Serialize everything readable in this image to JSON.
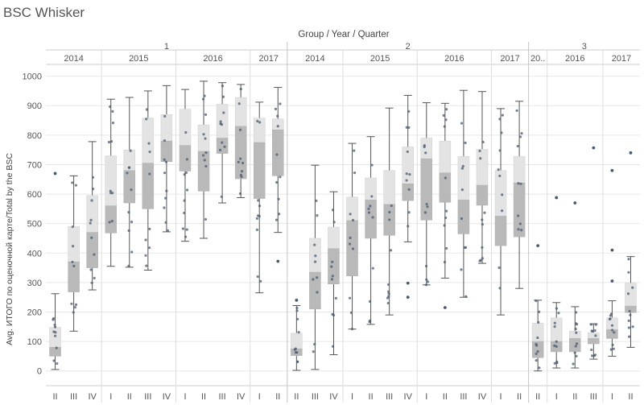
{
  "title": "BSC Whisker",
  "chart_data": {
    "type": "boxplot",
    "column_header": "Group / Year / Quarter",
    "ylabel": "Avg. ИТОГО по оценочной карте/Total by the BSC",
    "ylim": [
      -50,
      1040
    ],
    "yticks": [
      0,
      100,
      200,
      300,
      400,
      500,
      600,
      700,
      800,
      900,
      1000
    ],
    "colors": {
      "upper_box": "#e3e3e3",
      "lower_box": "#b9b9b9",
      "whisker": "#555555",
      "dot": "#4a5a6e",
      "grid": "#e8e8e8",
      "divider": "#cccccc"
    },
    "groups": [
      {
        "name": "1",
        "years": [
          {
            "year": "2014",
            "quarters": [
              {
                "q": "II",
                "min": 5,
                "q1": 50,
                "median": 80,
                "q3": 148,
                "max": 262,
                "outliers": [
                  670
                ]
              },
              {
                "q": "III",
                "min": 135,
                "q1": 268,
                "median": 370,
                "q3": 490,
                "max": 662,
                "outliers": []
              },
              {
                "q": "IV",
                "min": 275,
                "q1": 350,
                "median": 470,
                "q3": 595,
                "max": 778,
                "outliers": []
              }
            ]
          },
          {
            "year": "2015",
            "quarters": [
              {
                "q": "I",
                "min": 355,
                "q1": 468,
                "median": 560,
                "q3": 730,
                "max": 922,
                "outliers": []
              },
              {
                "q": "II",
                "min": 352,
                "q1": 570,
                "median": 680,
                "q3": 750,
                "max": 928,
                "outliers": []
              },
              {
                "q": "III",
                "min": 342,
                "q1": 550,
                "median": 705,
                "q3": 858,
                "max": 950,
                "outliers": []
              },
              {
                "q": "IV",
                "min": 472,
                "q1": 710,
                "median": 780,
                "q3": 870,
                "max": 968,
                "outliers": []
              }
            ]
          },
          {
            "year": "2016",
            "quarters": [
              {
                "q": "I",
                "min": 440,
                "q1": 678,
                "median": 765,
                "q3": 888,
                "max": 955,
                "outliers": []
              },
              {
                "q": "II",
                "min": 450,
                "q1": 610,
                "median": 745,
                "q3": 835,
                "max": 983,
                "outliers": []
              },
              {
                "q": "III",
                "min": 570,
                "q1": 738,
                "median": 790,
                "q3": 905,
                "max": 978,
                "outliers": []
              },
              {
                "q": "IV",
                "min": 588,
                "q1": 652,
                "median": 830,
                "q3": 928,
                "max": 972,
                "outliers": []
              }
            ]
          },
          {
            "year": "2017",
            "quarters": [
              {
                "q": "I",
                "min": 265,
                "q1": 585,
                "median": 775,
                "q3": 858,
                "max": 912,
                "outliers": []
              },
              {
                "q": "II",
                "min": 470,
                "q1": 662,
                "median": 818,
                "q3": 855,
                "max": 962,
                "outliers": [
                  372
                ]
              }
            ]
          }
        ]
      },
      {
        "name": "2",
        "years": [
          {
            "year": "2014",
            "quarters": [
              {
                "q": "II",
                "min": 2,
                "q1": 52,
                "median": 75,
                "q3": 128,
                "max": 222,
                "outliers": [
                  240
                ]
              },
              {
                "q": "III",
                "min": 5,
                "q1": 210,
                "median": 335,
                "q3": 450,
                "max": 698,
                "outliers": []
              },
              {
                "q": "IV",
                "min": 55,
                "q1": 295,
                "median": 415,
                "q3": 488,
                "max": 608,
                "outliers": []
              }
            ]
          },
          {
            "year": "2015",
            "quarters": [
              {
                "q": "I",
                "min": 142,
                "q1": 322,
                "median": 510,
                "q3": 590,
                "max": 772,
                "outliers": []
              },
              {
                "q": "II",
                "min": 158,
                "q1": 450,
                "median": 580,
                "q3": 655,
                "max": 795,
                "outliers": []
              },
              {
                "q": "III",
                "min": 190,
                "q1": 460,
                "median": 565,
                "q3": 680,
                "max": 892,
                "outliers": []
              },
              {
                "q": "IV",
                "min": 438,
                "q1": 578,
                "median": 635,
                "q3": 760,
                "max": 935,
                "outliers": [
                  298,
                  250
                ]
              }
            ]
          },
          {
            "year": "2016",
            "quarters": [
              {
                "q": "I",
                "min": 292,
                "q1": 512,
                "median": 720,
                "q3": 790,
                "max": 910,
                "outliers": []
              },
              {
                "q": "II",
                "min": 315,
                "q1": 572,
                "median": 672,
                "q3": 780,
                "max": 908,
                "outliers": [
                  215
                ]
              },
              {
                "q": "III",
                "min": 250,
                "q1": 465,
                "median": 580,
                "q3": 728,
                "max": 952,
                "outliers": []
              },
              {
                "q": "IV",
                "min": 365,
                "q1": 562,
                "median": 630,
                "q3": 752,
                "max": 948,
                "outliers": []
              }
            ]
          },
          {
            "year": "2017",
            "quarters": [
              {
                "q": "I",
                "min": 190,
                "q1": 425,
                "median": 525,
                "q3": 680,
                "max": 890,
                "outliers": []
              },
              {
                "q": "II",
                "min": 280,
                "q1": 455,
                "median": 638,
                "q3": 728,
                "max": 915,
                "outliers": []
              }
            ]
          }
        ]
      },
      {
        "name": "3",
        "years": [
          {
            "year": "20..",
            "quarters": [
              {
                "q": "II",
                "min": 0,
                "q1": 45,
                "median": 100,
                "q3": 162,
                "max": 240,
                "outliers": [
                  425
                ]
              }
            ]
          },
          {
            "year": "2016",
            "quarters": [
              {
                "q": "I",
                "min": 10,
                "q1": 65,
                "median": 100,
                "q3": 180,
                "max": 232,
                "outliers": [
                  588
                ]
              },
              {
                "q": "II",
                "min": 10,
                "q1": 65,
                "median": 110,
                "q3": 135,
                "max": 218,
                "outliers": [
                  570
                ]
              },
              {
                "q": "III",
                "min": 40,
                "q1": 92,
                "median": 110,
                "q3": 130,
                "max": 160,
                "outliers": [
                  757
                ]
              }
            ]
          },
          {
            "year": "2017",
            "quarters": [
              {
                "q": "I",
                "min": 50,
                "q1": 110,
                "median": 140,
                "q3": 180,
                "max": 238,
                "outliers": [
                  680,
                  410,
                  305
                ]
              },
              {
                "q": "II",
                "min": 80,
                "q1": 198,
                "median": 220,
                "q3": 298,
                "max": 388,
                "outliers": [
                  740
                ]
              }
            ]
          }
        ]
      }
    ]
  }
}
